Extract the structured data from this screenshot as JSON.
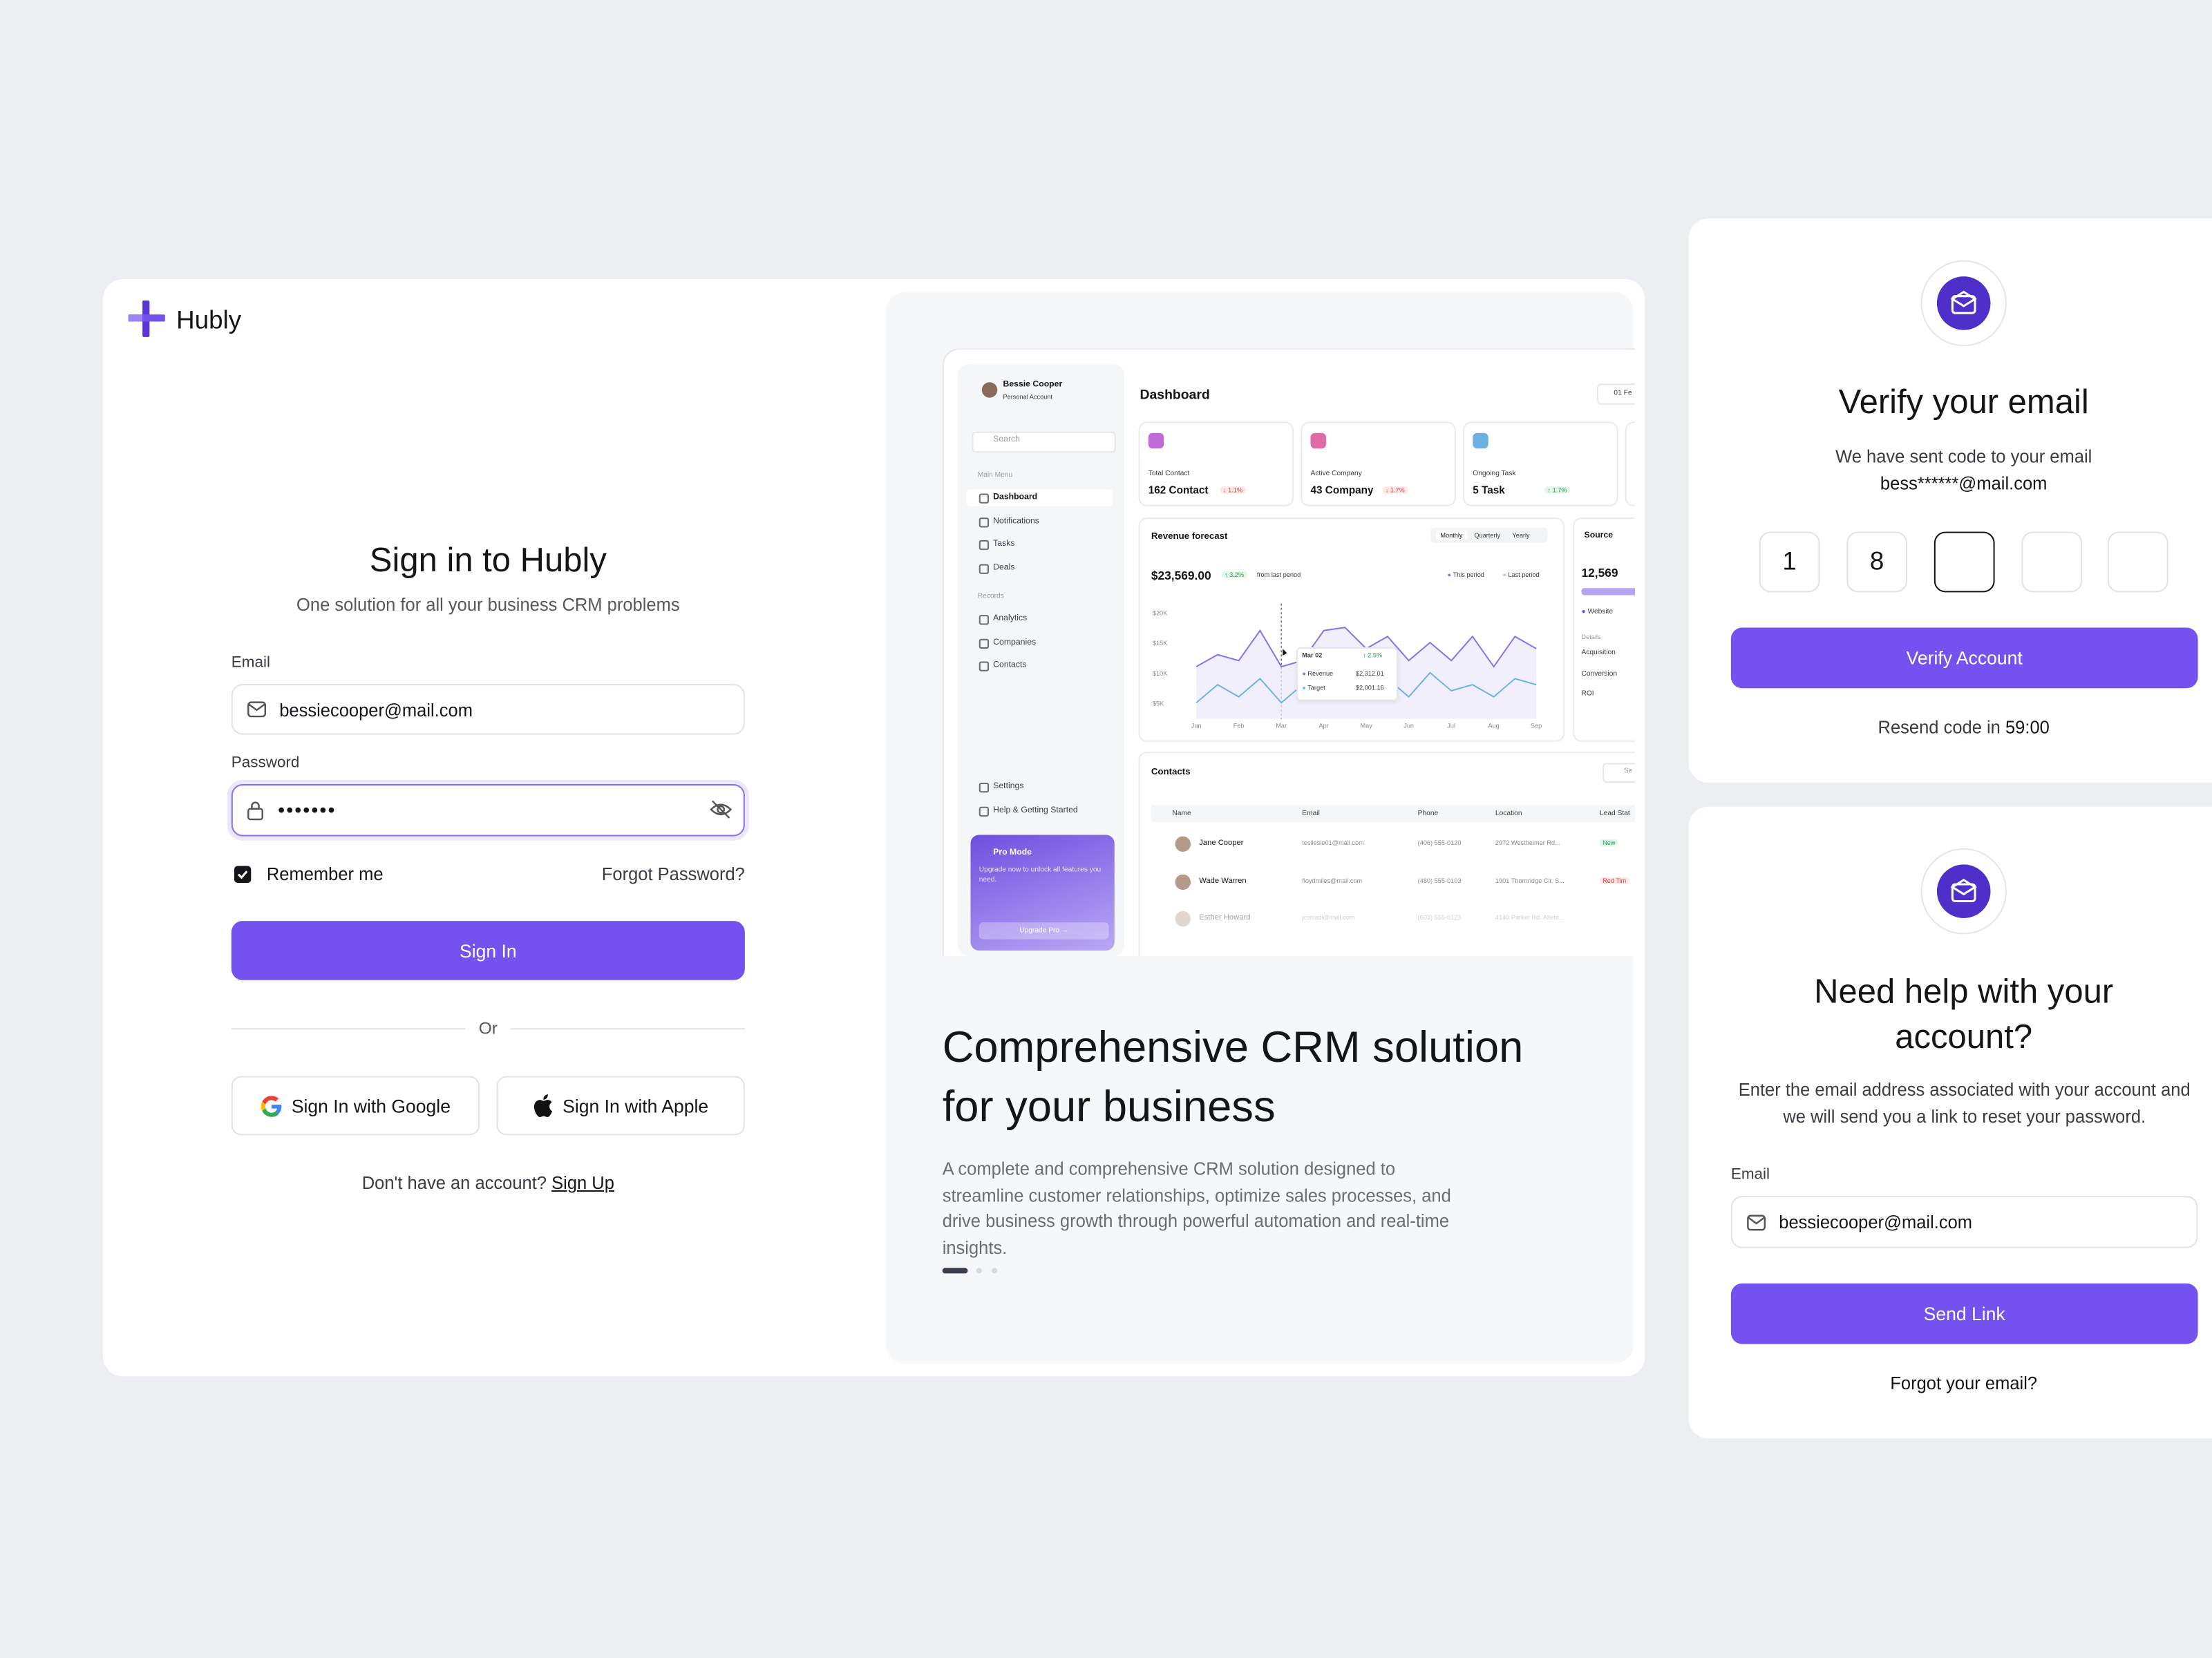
{
  "brand": "Hubly",
  "sign_in": {
    "title": "Sign in to Hubly",
    "subtitle": "One solution for all your business CRM problems",
    "email_label": "Email",
    "email_value": "bessiecooper@mail.com",
    "password_label": "Password",
    "password_value": "•••••••",
    "remember": "Remember me",
    "forgot": "Forgot Password?",
    "button": "Sign In",
    "divider": "Or",
    "google": "Sign In with Google",
    "apple": "Sign In with Apple",
    "no_account": "Don't have an account?",
    "sign_up": "Sign Up"
  },
  "promo": {
    "title": "Comprehensive CRM solution for your business",
    "description": "A complete and comprehensive CRM solution designed to streamline customer relationships, optimize sales processes, and drive business growth through powerful automation and real-time insights."
  },
  "dashboard": {
    "user_name": "Bessie Cooper",
    "user_role": "Personal Account",
    "search": "Search",
    "main_menu_label": "Main Menu",
    "main_menu": [
      "Dashboard",
      "Notifications",
      "Tasks",
      "Deals"
    ],
    "records_label": "Records",
    "records": [
      "Analytics",
      "Companies",
      "Contacts"
    ],
    "footer_menu": [
      "Settings",
      "Help & Getting Started"
    ],
    "pro_title": "Pro Mode",
    "pro_text": "Upgrade now to unlock all features you need.",
    "pro_button": "Upgrade Pro →",
    "page_title": "Dashboard",
    "date": "01 Fe",
    "stats": [
      {
        "label": "Total Contact",
        "value": "162 Contact",
        "change": "↓ 1.1%"
      },
      {
        "label": "Active Company",
        "value": "43 Company",
        "change": "↓ 1.7%"
      },
      {
        "label": "Ongoing Task",
        "value": "5 Task",
        "change": "↑ 1.7%"
      }
    ],
    "revenue": {
      "title": "Revenue forecast",
      "tabs": [
        "Monthly",
        "Quarterly",
        "Yearly"
      ],
      "total": "$23,569.00",
      "change": "↑ 3.2%",
      "change_note": "from last period",
      "legend": [
        "This period",
        "Last period"
      ],
      "chart": {
        "type": "line",
        "x": [
          0,
          0.5,
          1,
          1.5,
          2,
          2.5,
          3,
          3.5,
          4,
          4.5,
          5,
          5.5,
          6,
          6.5,
          7,
          7.5,
          8
        ],
        "series": [
          {
            "name": "Revenue",
            "color": "#8b74e8",
            "values": [
              11,
              13,
              12,
              17,
              11,
              12,
              17,
              17.5,
              14,
              16,
              12,
              15,
              12,
              16,
              11,
              16,
              14
            ]
          },
          {
            "name": "Target",
            "color": "#6fb3e6",
            "values": [
              5,
              8,
              6,
              9,
              5,
              8,
              6,
              7,
              6,
              9,
              6,
              10,
              7,
              8,
              6,
              9,
              8
            ]
          }
        ],
        "xlim": [
          0,
          8
        ],
        "xticks": [
          {
            "value": 0,
            "label": "Jan"
          },
          {
            "value": 1,
            "label": "Feb"
          },
          {
            "value": 2,
            "label": "Mar"
          },
          {
            "value": 3,
            "label": "Apr"
          },
          {
            "value": 4,
            "label": "May"
          },
          {
            "value": 5,
            "label": "Jun"
          },
          {
            "value": 6,
            "label": "Jul"
          },
          {
            "value": 7,
            "label": "Aug"
          },
          {
            "value": 8,
            "label": "Sep"
          }
        ],
        "ylim": [
          0,
          22
        ],
        "yticks": [
          {
            "value": 5,
            "label": "$5K"
          },
          {
            "value": 10,
            "label": "$10K"
          },
          {
            "value": 15,
            "label": "$15K"
          },
          {
            "value": 20,
            "label": "$20K"
          }
        ]
      },
      "tooltip": {
        "date": "Mar 02",
        "change": "↑ 2.5%",
        "values": [
          "$2,312.01",
          "$2,001.16"
        ]
      }
    },
    "source": {
      "title": "Source",
      "total": "12,569",
      "legend": [
        "Website"
      ],
      "details_label": "Details",
      "details": [
        "Acquisition",
        "Conversion",
        "ROI"
      ]
    },
    "contacts": {
      "title": "Contacts",
      "search": "Se",
      "columns": [
        "Name",
        "Email",
        "Phone",
        "Location",
        "Lead Stat"
      ],
      "rows": [
        [
          "Jane Cooper",
          "tesilesie01@mail.com",
          "(406) 555-0120",
          "2972 Westheimer Rd...",
          "New"
        ],
        [
          "Wade Warren",
          "floydmiles@mail.com",
          "(480) 555-0103",
          "1901 Thornridge Cir. S...",
          "Red Tim"
        ],
        [
          "Esther Howard",
          "jcorradi@mail.com",
          "(603) 555-0123",
          "4140 Parker Rd. Allent..."
        ]
      ]
    }
  },
  "verify": {
    "title": "Verify your email",
    "text": "We have sent code to your email",
    "email": "bess******@mail.com",
    "digits": [
      "1",
      "8"
    ],
    "button": "Verify Account",
    "resend": "Resend code in",
    "timer": "59:00"
  },
  "help": {
    "title": "Need help with your account?",
    "text": "Enter the email address associated with your account and we will send you a link to reset your password.",
    "email_label": "Email",
    "email_value": "bessiecooper@mail.com",
    "button": "Send Link",
    "forgot": "Forgot your email?"
  }
}
